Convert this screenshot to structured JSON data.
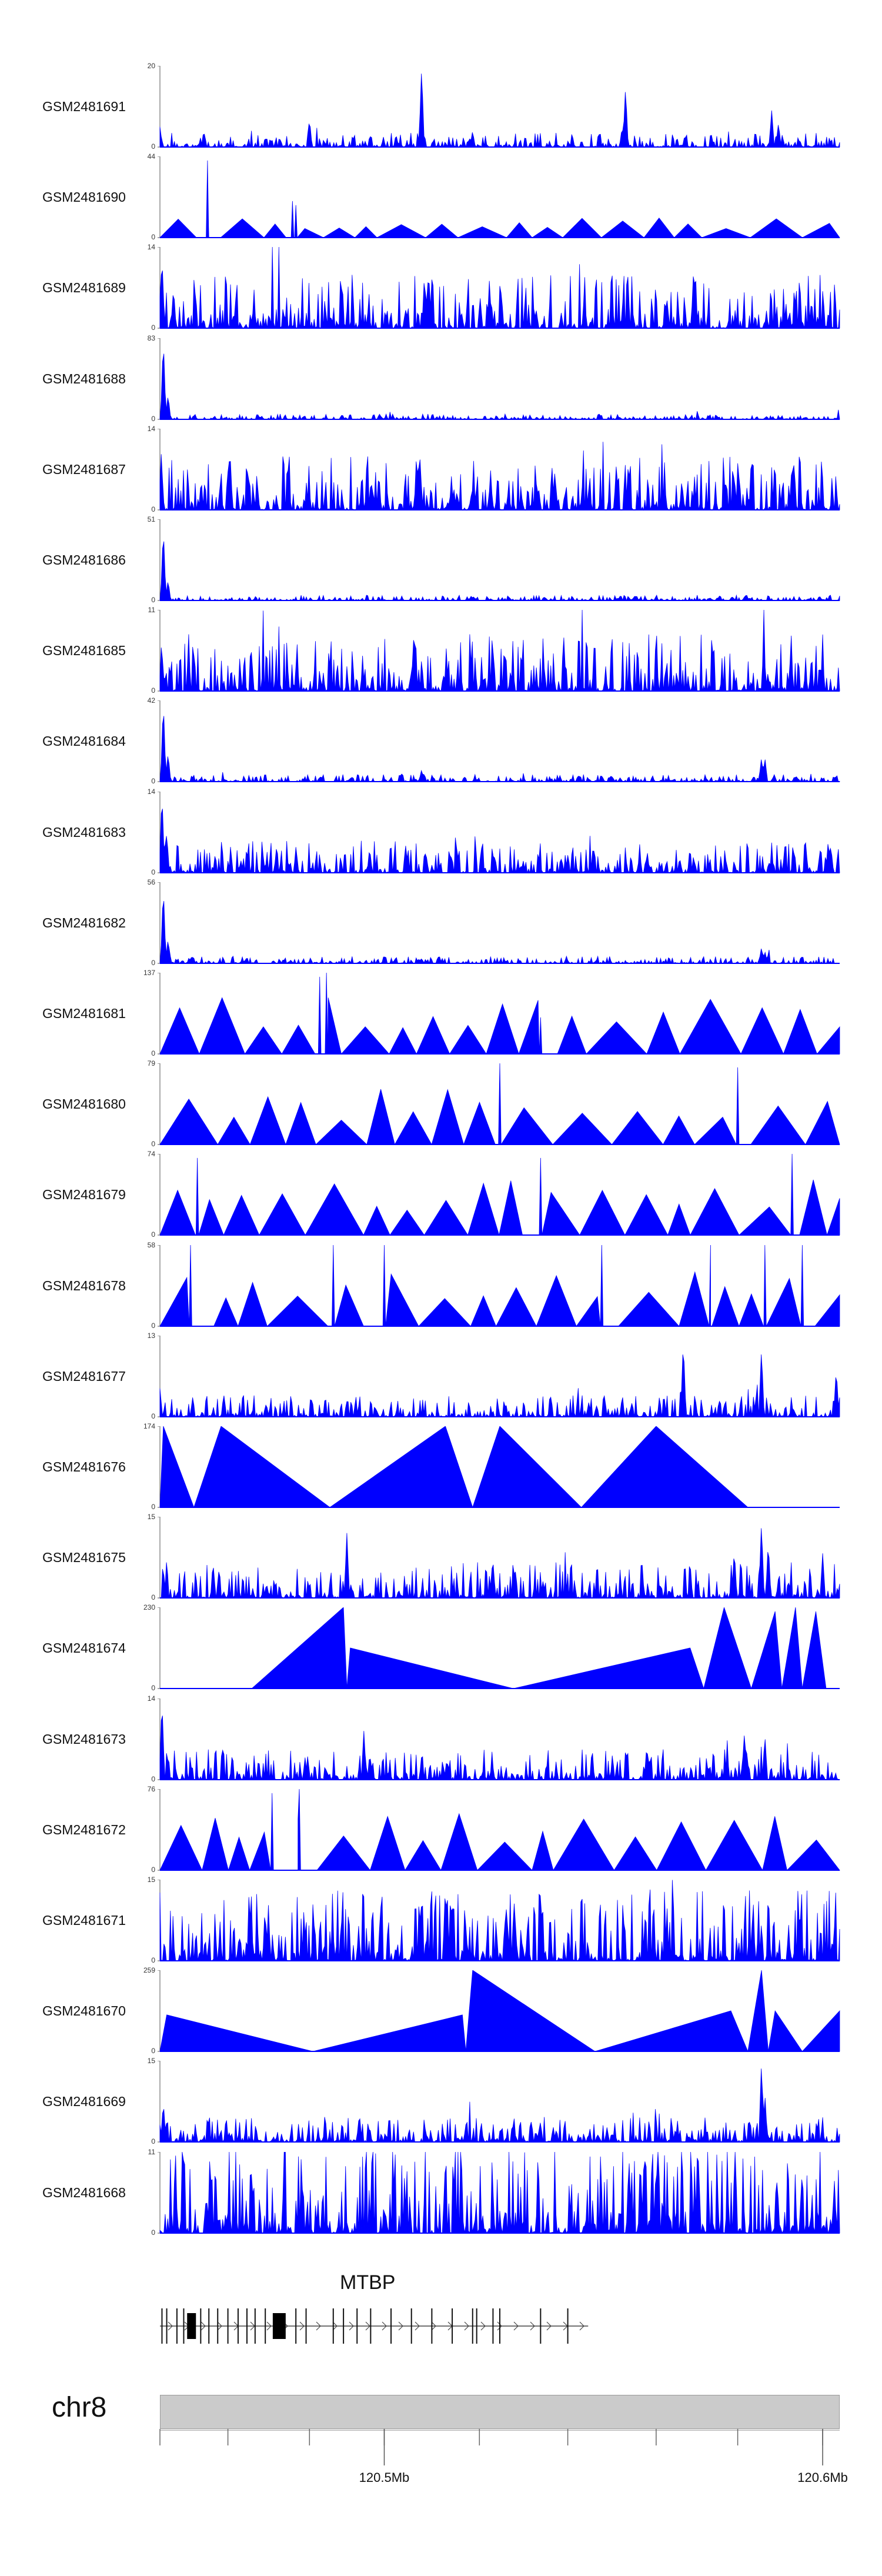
{
  "chart_data": {
    "type": "area",
    "color": "#0000ff",
    "tracks": [
      {
        "name": "GSM2481691",
        "ymax": "20",
        "ymin": "0",
        "shape": "noise",
        "seed": 11,
        "base": 0.08,
        "peaks": [
          [
            0.0,
            0.25
          ],
          [
            0.22,
            0.35
          ],
          [
            0.385,
            1.0
          ],
          [
            0.46,
            0.2
          ],
          [
            0.68,
            0.25
          ],
          [
            0.685,
            0.75
          ],
          [
            0.9,
            0.45
          ],
          [
            0.91,
            0.3
          ]
        ]
      },
      {
        "name": "GSM2481690",
        "ymax": "44",
        "ymin": "0",
        "shape": "tri",
        "seed": 12,
        "base": 0.18,
        "peaks": [
          [
            0.07,
            0.95
          ],
          [
            0.195,
            0.45
          ],
          [
            0.2,
            0.4
          ]
        ]
      },
      {
        "name": "GSM2481689",
        "ymax": "14",
        "ymin": "0",
        "shape": "noise",
        "seed": 13,
        "base": 0.3,
        "peaks": [
          [
            0.003,
            0.9
          ],
          [
            0.02,
            0.5
          ]
        ]
      },
      {
        "name": "GSM2481688",
        "ymax": "83",
        "ymin": "0",
        "shape": "noise",
        "seed": 14,
        "base": 0.03,
        "peaks": [
          [
            0.005,
            1.0
          ],
          [
            0.012,
            0.3
          ]
        ]
      },
      {
        "name": "GSM2481687",
        "ymax": "14",
        "ymin": "0",
        "shape": "noise",
        "seed": 15,
        "base": 0.3,
        "peaks": [
          [
            0.002,
            0.7
          ],
          [
            0.93,
            0.6
          ]
        ]
      },
      {
        "name": "GSM2481686",
        "ymax": "51",
        "ymin": "0",
        "shape": "noise",
        "seed": 16,
        "base": 0.03,
        "peaks": [
          [
            0.005,
            0.9
          ],
          [
            0.012,
            0.25
          ]
        ]
      },
      {
        "name": "GSM2481685",
        "ymax": "11",
        "ymin": "0",
        "shape": "noise",
        "seed": 17,
        "base": 0.32,
        "peaks": [
          [
            0.003,
            0.5
          ]
        ]
      },
      {
        "name": "GSM2481684",
        "ymax": "42",
        "ymin": "0",
        "shape": "noise",
        "seed": 18,
        "base": 0.04,
        "peaks": [
          [
            0.005,
            1.0
          ],
          [
            0.012,
            0.35
          ],
          [
            0.385,
            0.15
          ],
          [
            0.885,
            0.3
          ],
          [
            0.89,
            0.3
          ]
        ]
      },
      {
        "name": "GSM2481683",
        "ymax": "14",
        "ymin": "0",
        "shape": "noise",
        "seed": 19,
        "base": 0.18,
        "peaks": [
          [
            0.003,
            1.0
          ],
          [
            0.01,
            0.5
          ]
        ]
      },
      {
        "name": "GSM2481682",
        "ymax": "56",
        "ymin": "0",
        "shape": "noise",
        "seed": 20,
        "base": 0.04,
        "peaks": [
          [
            0.005,
            0.95
          ],
          [
            0.012,
            0.3
          ],
          [
            0.385,
            0.06
          ],
          [
            0.885,
            0.2
          ],
          [
            0.89,
            0.15
          ]
        ]
      },
      {
        "name": "GSM2481681",
        "ymax": "137",
        "ymin": "0",
        "shape": "tri",
        "seed": 21,
        "base": 0.5,
        "peaks": [
          [
            0.235,
            0.95
          ],
          [
            0.245,
            1.0
          ],
          [
            0.56,
            0.45
          ],
          [
            0.56,
            0.45
          ]
        ]
      },
      {
        "name": "GSM2481680",
        "ymax": "79",
        "ymin": "0",
        "shape": "tri",
        "seed": 22,
        "base": 0.5,
        "peaks": [
          [
            0.5,
            1.0
          ],
          [
            0.85,
            0.95
          ]
        ]
      },
      {
        "name": "GSM2481679",
        "ymax": "74",
        "ymin": "0",
        "shape": "tri",
        "seed": 23,
        "base": 0.5,
        "peaks": [
          [
            0.055,
            0.95
          ],
          [
            0.56,
            0.95
          ],
          [
            0.93,
            1.0
          ]
        ]
      },
      {
        "name": "GSM2481678",
        "ymax": "58",
        "ymin": "0",
        "shape": "tri",
        "seed": 24,
        "base": 0.55,
        "peaks": [
          [
            0.045,
            1.0
          ],
          [
            0.255,
            1.0
          ],
          [
            0.33,
            1.0
          ],
          [
            0.65,
            1.0
          ],
          [
            0.81,
            1.0
          ],
          [
            0.89,
            1.0
          ],
          [
            0.945,
            1.0
          ]
        ]
      },
      {
        "name": "GSM2481677",
        "ymax": "13",
        "ymin": "0",
        "shape": "noise",
        "seed": 25,
        "base": 0.12,
        "peaks": [
          [
            0.0,
            0.35
          ],
          [
            0.77,
            0.95
          ],
          [
            0.885,
            0.85
          ],
          [
            0.995,
            0.6
          ]
        ]
      },
      {
        "name": "GSM2481676",
        "ymax": "174",
        "ymin": "0",
        "shape": "tri-list",
        "seed": 26,
        "base": 0.0,
        "peaks": [
          [
            0.0,
            0.0
          ],
          [
            0.005,
            1.0
          ],
          [
            0.05,
            0.0
          ],
          [
            0.09,
            1.0
          ],
          [
            0.25,
            0.0
          ],
          [
            0.42,
            1.0
          ],
          [
            0.46,
            0.0
          ],
          [
            0.5,
            1.0
          ],
          [
            0.62,
            0.0
          ],
          [
            0.73,
            1.0
          ],
          [
            0.865,
            0.0
          ]
        ]
      },
      {
        "name": "GSM2481675",
        "ymax": "15",
        "ymin": "0",
        "shape": "noise",
        "seed": 27,
        "base": 0.2,
        "peaks": [
          [
            0.275,
            0.8
          ],
          [
            0.845,
            0.6
          ],
          [
            0.885,
            0.95
          ],
          [
            0.895,
            0.7
          ],
          [
            0.975,
            0.55
          ]
        ]
      },
      {
        "name": "GSM2481674",
        "ymax": "230",
        "ymin": "0",
        "shape": "tri-list",
        "seed": 28,
        "base": 0.0,
        "peaks": [
          [
            0.135,
            0.0
          ],
          [
            0.27,
            1.0
          ],
          [
            0.275,
            0.0
          ],
          [
            0.28,
            0.5
          ],
          [
            0.52,
            0.0
          ],
          [
            0.78,
            0.5
          ],
          [
            0.8,
            0.0
          ],
          [
            0.83,
            1.0
          ],
          [
            0.87,
            0.0
          ],
          [
            0.905,
            0.95
          ],
          [
            0.915,
            0.0
          ],
          [
            0.935,
            1.0
          ],
          [
            0.945,
            0.0
          ],
          [
            0.965,
            0.95
          ],
          [
            0.98,
            0.0
          ]
        ]
      },
      {
        "name": "GSM2481673",
        "ymax": "14",
        "ymin": "0",
        "shape": "noise",
        "seed": 29,
        "base": 0.17,
        "peaks": [
          [
            0.003,
            1.0
          ],
          [
            0.3,
            0.6
          ],
          [
            0.86,
            0.6
          ],
          [
            0.89,
            0.55
          ]
        ]
      },
      {
        "name": "GSM2481672",
        "ymax": "76",
        "ymin": "0",
        "shape": "tri",
        "seed": 30,
        "base": 0.55,
        "peaks": [
          [
            0.165,
            0.95
          ],
          [
            0.205,
            1.0
          ]
        ]
      },
      {
        "name": "GSM2481671",
        "ymax": "15",
        "ymin": "0",
        "shape": "noise",
        "seed": 31,
        "base": 0.4,
        "peaks": [
          [
            0.42,
            0.95
          ],
          [
            0.51,
            0.7
          ],
          [
            0.94,
            0.55
          ]
        ]
      },
      {
        "name": "GSM2481670",
        "ymax": "259",
        "ymin": "0",
        "shape": "tri-list",
        "seed": 32,
        "base": 0.0,
        "peaks": [
          [
            0.0,
            0.0
          ],
          [
            0.01,
            0.45
          ],
          [
            0.225,
            0.0
          ],
          [
            0.445,
            0.45
          ],
          [
            0.45,
            0.0
          ],
          [
            0.46,
            1.0
          ],
          [
            0.64,
            0.0
          ],
          [
            0.84,
            0.5
          ],
          [
            0.865,
            0.0
          ],
          [
            0.885,
            1.0
          ],
          [
            0.895,
            0.0
          ],
          [
            0.905,
            0.5
          ],
          [
            0.945,
            0.0
          ],
          [
            1.0,
            0.5
          ]
        ]
      },
      {
        "name": "GSM2481669",
        "ymax": "15",
        "ymin": "0",
        "shape": "noise",
        "seed": 33,
        "base": 0.14,
        "peaks": [
          [
            0.005,
            0.5
          ],
          [
            0.885,
            1.0
          ],
          [
            0.89,
            0.6
          ]
        ]
      },
      {
        "name": "GSM2481668",
        "ymax": "11",
        "ymin": "0",
        "shape": "noise",
        "seed": 34,
        "base": 0.5,
        "peaks": [
          [
            0.135,
            0.8
          ],
          [
            0.69,
            0.95
          ],
          [
            0.73,
            0.85
          ]
        ]
      }
    ],
    "gene": {
      "name": "MTBP",
      "exons_thick": [
        [
          0.04,
          0.053
        ],
        [
          0.166,
          0.185
        ]
      ],
      "exons_thin": [
        0.003,
        0.01,
        0.025,
        0.035,
        0.06,
        0.072,
        0.085,
        0.1,
        0.115,
        0.128,
        0.14,
        0.155,
        0.2,
        0.215,
        0.255,
        0.27,
        0.29,
        0.31,
        0.34,
        0.37,
        0.4,
        0.43,
        0.46,
        0.466,
        0.49,
        0.5,
        0.56,
        0.6
      ]
    },
    "chromosome": "chr8",
    "xaxis": {
      "tick_labels": [
        "120.5Mb",
        "120.6Mb"
      ],
      "label_positions": [
        0.33,
        0.975
      ],
      "minor_ticks": [
        0.0,
        0.1,
        0.22,
        0.33,
        0.47,
        0.6,
        0.73,
        0.85,
        0.975
      ]
    }
  }
}
